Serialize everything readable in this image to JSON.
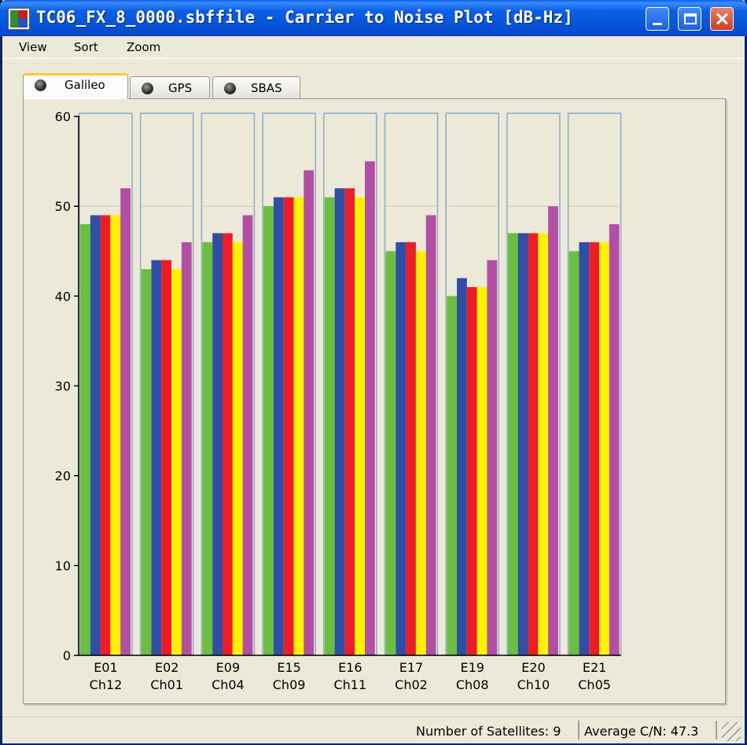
{
  "window": {
    "title": "TC06_FX_8_0000.sbffile - Carrier to Noise Plot [dB-Hz]",
    "icon": "app-plot-icon"
  },
  "menu": [
    {
      "label": "View",
      "mnemonic": "V"
    },
    {
      "label": "Sort",
      "mnemonic": "S"
    },
    {
      "label": "Zoom",
      "mnemonic": "Z"
    }
  ],
  "tabs": [
    {
      "label": "Galileo",
      "active": true
    },
    {
      "label": "GPS",
      "active": false
    },
    {
      "label": "SBAS",
      "active": false
    }
  ],
  "colors": {
    "series": [
      "#6abf3f",
      "#2f4ea8",
      "#ee1c24",
      "#fff200",
      "#b24fa5"
    ],
    "column_border": "#8db2c8",
    "axis": "#000000"
  },
  "chart_data": {
    "type": "bar",
    "ylim": [
      0,
      60
    ],
    "yticks": [
      0,
      10,
      20,
      30,
      40,
      50,
      60
    ],
    "gridlines": [
      50
    ],
    "groups": [
      {
        "sat": "E01",
        "channel": "Ch12",
        "values": [
          48,
          49,
          49,
          49,
          52
        ]
      },
      {
        "sat": "E02",
        "channel": "Ch01",
        "values": [
          43,
          44,
          44,
          43,
          46
        ]
      },
      {
        "sat": "E09",
        "channel": "Ch04",
        "values": [
          46,
          47,
          47,
          46,
          49
        ]
      },
      {
        "sat": "E15",
        "channel": "Ch09",
        "values": [
          50,
          51,
          51,
          51,
          54
        ]
      },
      {
        "sat": "E16",
        "channel": "Ch11",
        "values": [
          51,
          52,
          52,
          51,
          55
        ]
      },
      {
        "sat": "E17",
        "channel": "Ch02",
        "values": [
          45,
          46,
          46,
          45,
          49
        ]
      },
      {
        "sat": "E19",
        "channel": "Ch08",
        "values": [
          40,
          42,
          41,
          41,
          44
        ]
      },
      {
        "sat": "E20",
        "channel": "Ch10",
        "values": [
          47,
          47,
          47,
          47,
          50
        ]
      },
      {
        "sat": "E21",
        "channel": "Ch05",
        "values": [
          45,
          46,
          46,
          46,
          48
        ]
      }
    ]
  },
  "status": {
    "satellites": "Number of Satellites: 9",
    "average": "Average C/N: 47.3"
  }
}
